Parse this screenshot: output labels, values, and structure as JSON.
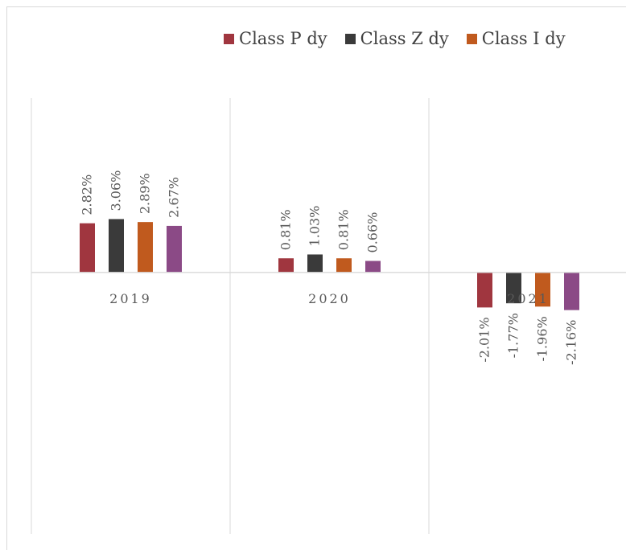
{
  "chart_data": {
    "type": "bar",
    "categories": [
      "2019",
      "2020",
      "2021"
    ],
    "series": [
      {
        "name": "Class P dy",
        "values": [
          2.82,
          0.81,
          -2.01
        ],
        "labels": [
          "2.82%",
          "0.81%",
          "-2.01%"
        ],
        "color": "#a0363f"
      },
      {
        "name": "Class Z dy",
        "values": [
          3.06,
          1.03,
          -1.77
        ],
        "labels": [
          "3.06%",
          "1.03%",
          "-1.77%"
        ],
        "color": "#3a3a3a"
      },
      {
        "name": "Class I dy",
        "values": [
          2.89,
          0.81,
          -1.96
        ],
        "labels": [
          "2.89%",
          "0.81%",
          "-1.96%"
        ],
        "color": "#c05a1e"
      },
      {
        "name": "",
        "values": [
          2.67,
          0.66,
          -2.16
        ],
        "labels": [
          "2.67%",
          "0.66%",
          "-2.16%"
        ],
        "color": "#8b4a86"
      }
    ],
    "legend": "top-right",
    "grid": "vertical category separators",
    "ylim": [
      -15,
      10
    ]
  }
}
